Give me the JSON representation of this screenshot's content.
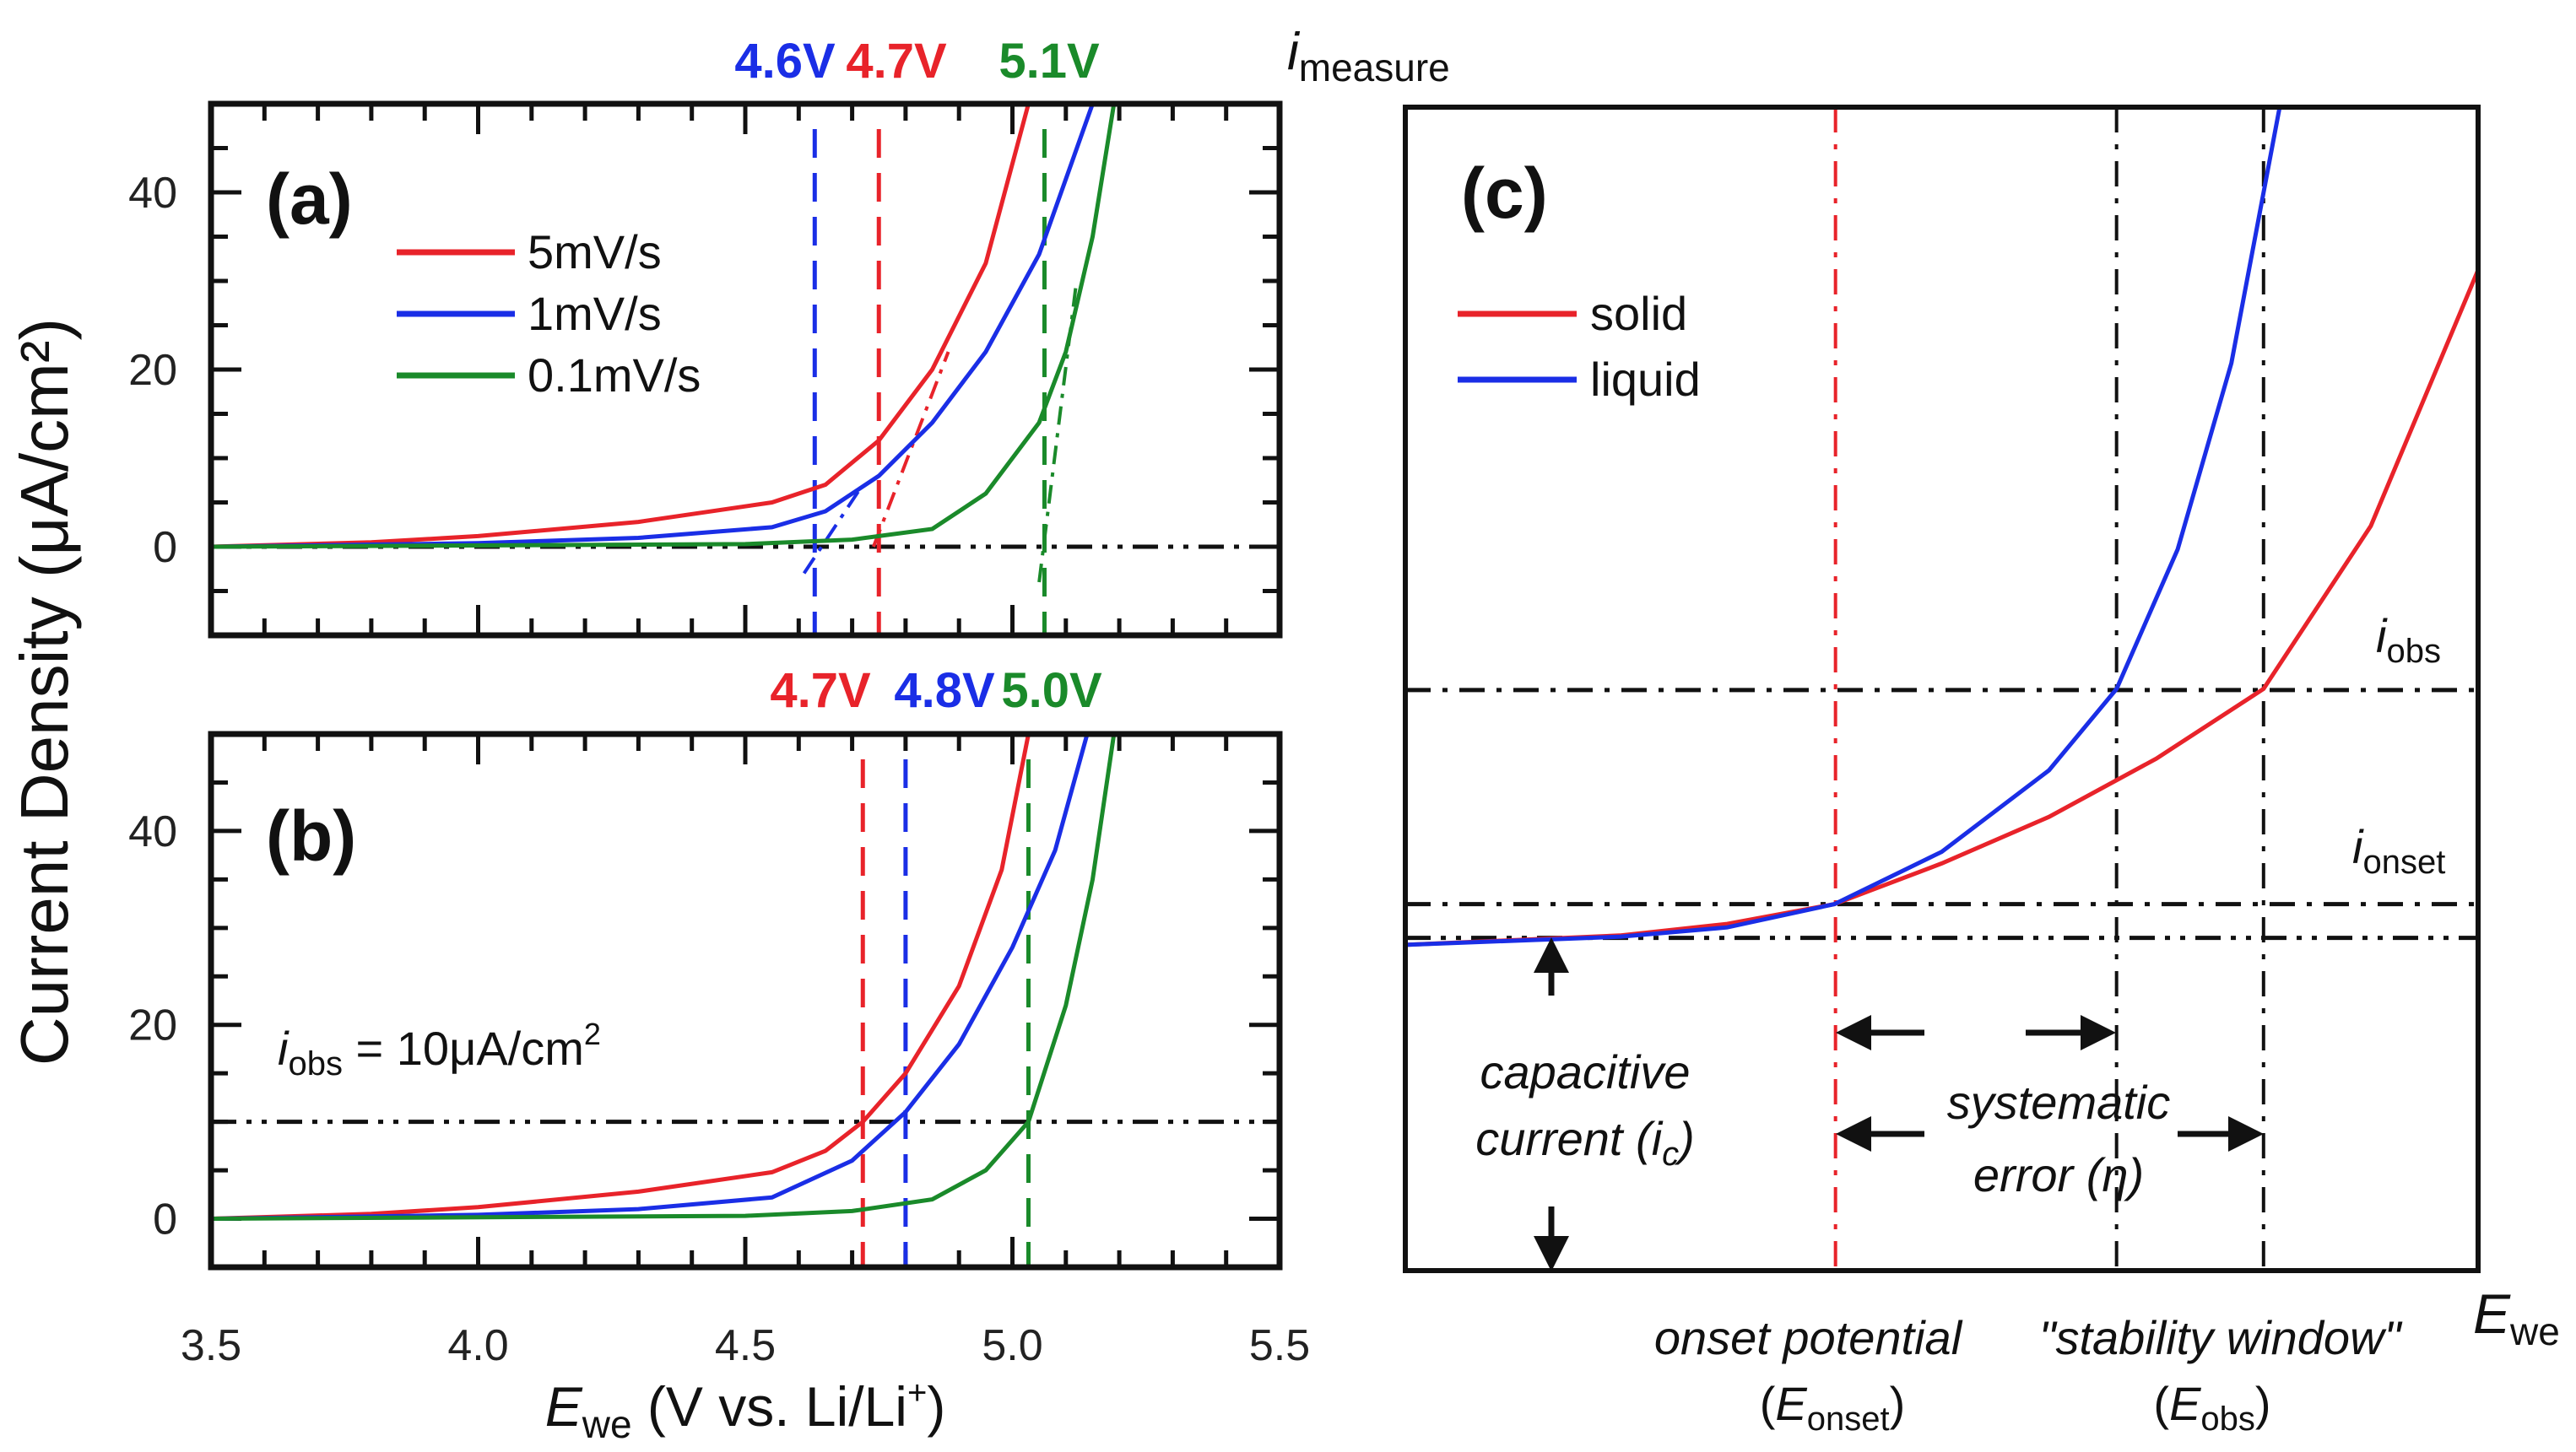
{
  "figure": {
    "ylabel": "Current Density (μA/cm²)",
    "xlabel_main": "E",
    "xlabel_sub": "we",
    "xlabel_rest": " (V vs. Li/Li",
    "xlabel_sup": "+",
    "xlabel_end": ")",
    "i_measure_main": "i",
    "i_measure_sub": "measure"
  },
  "colors": {
    "red": "#e8232a",
    "blue": "#1a2ee6",
    "green": "#1a8a2a",
    "black": "#111111"
  },
  "chart_data": [
    {
      "type": "line",
      "panel_label": "(a)",
      "xlim": [
        3.5,
        5.5
      ],
      "ylim": [
        -10,
        50
      ],
      "xticks": [
        3.5,
        4.0,
        4.5,
        5.0,
        5.5
      ],
      "yticks": [
        0,
        20,
        40
      ],
      "legend": "top-left",
      "series": [
        {
          "name": "5mV/s",
          "color": "red",
          "points": [
            [
              3.5,
              0
            ],
            [
              3.8,
              0.5
            ],
            [
              4.0,
              1.2
            ],
            [
              4.3,
              2.8
            ],
            [
              4.55,
              5
            ],
            [
              4.65,
              7
            ],
            [
              4.75,
              12
            ],
            [
              4.85,
              20
            ],
            [
              4.95,
              32
            ],
            [
              5.03,
              50
            ]
          ]
        },
        {
          "name": "1mV/s",
          "color": "blue",
          "points": [
            [
              3.5,
              0
            ],
            [
              4.0,
              0.4
            ],
            [
              4.3,
              1
            ],
            [
              4.55,
              2.2
            ],
            [
              4.65,
              4
            ],
            [
              4.75,
              8
            ],
            [
              4.85,
              14
            ],
            [
              4.95,
              22
            ],
            [
              5.05,
              33
            ],
            [
              5.15,
              50
            ]
          ]
        },
        {
          "name": "0.1mV/s",
          "color": "green",
          "points": [
            [
              3.5,
              0
            ],
            [
              4.5,
              0.3
            ],
            [
              4.7,
              0.8
            ],
            [
              4.85,
              2
            ],
            [
              4.95,
              6
            ],
            [
              5.05,
              14
            ],
            [
              5.1,
              22
            ],
            [
              5.15,
              35
            ],
            [
              5.19,
              50
            ]
          ]
        }
      ],
      "onset_lines": [
        {
          "label": "4.6V",
          "value": 4.63,
          "color": "blue"
        },
        {
          "label": "4.7V",
          "value": 4.75,
          "color": "red"
        },
        {
          "label": "5.1V",
          "value": 5.06,
          "color": "green"
        }
      ],
      "reference_line_y": 0
    },
    {
      "type": "line",
      "panel_label": "(b)",
      "xlim": [
        3.5,
        5.5
      ],
      "ylim": [
        -5,
        50
      ],
      "xticks": [
        3.5,
        4.0,
        4.5,
        5.0,
        5.5
      ],
      "yticks": [
        0,
        20,
        40
      ],
      "series": [
        {
          "name": "5mV/s",
          "color": "red",
          "points": [
            [
              3.5,
              0
            ],
            [
              3.8,
              0.5
            ],
            [
              4.0,
              1.2
            ],
            [
              4.3,
              2.8
            ],
            [
              4.55,
              4.8
            ],
            [
              4.65,
              7
            ],
            [
              4.72,
              10
            ],
            [
              4.8,
              15
            ],
            [
              4.9,
              24
            ],
            [
              4.98,
              36
            ],
            [
              5.03,
              50
            ]
          ]
        },
        {
          "name": "1mV/s",
          "color": "blue",
          "points": [
            [
              3.5,
              0
            ],
            [
              4.0,
              0.4
            ],
            [
              4.3,
              1
            ],
            [
              4.55,
              2.2
            ],
            [
              4.7,
              6
            ],
            [
              4.8,
              11
            ],
            [
              4.9,
              18
            ],
            [
              5.0,
              28
            ],
            [
              5.08,
              38
            ],
            [
              5.14,
              50
            ]
          ]
        },
        {
          "name": "0.1mV/s",
          "color": "green",
          "points": [
            [
              3.5,
              0
            ],
            [
              4.5,
              0.3
            ],
            [
              4.7,
              0.8
            ],
            [
              4.85,
              2
            ],
            [
              4.95,
              5
            ],
            [
              5.03,
              10
            ],
            [
              5.1,
              22
            ],
            [
              5.15,
              35
            ],
            [
              5.19,
              50
            ]
          ]
        }
      ],
      "onset_lines": [
        {
          "label": "4.7V",
          "value": 4.72,
          "color": "red"
        },
        {
          "label": "4.8V",
          "value": 4.8,
          "color": "blue"
        },
        {
          "label": "5.0V",
          "value": 5.03,
          "color": "green"
        }
      ],
      "reference_line_y": 10,
      "annotation": {
        "main": "i",
        "sub": "obs",
        "rest": " = 10μA/cm",
        "sup": "2"
      }
    },
    {
      "type": "line",
      "panel_label": "(c)",
      "schematic": true,
      "xlim": [
        0,
        10
      ],
      "ylim": [
        0,
        10
      ],
      "legend": "top-left",
      "series": [
        {
          "name": "solid",
          "color": "red",
          "points": [
            [
              0,
              2.8
            ],
            [
              2,
              2.88
            ],
            [
              3,
              2.98
            ],
            [
              4,
              3.15
            ],
            [
              5,
              3.5
            ],
            [
              6,
              3.9
            ],
            [
              7,
              4.4
            ],
            [
              8,
              5
            ],
            [
              9,
              6.4
            ],
            [
              10,
              8.6
            ]
          ]
        },
        {
          "name": "liquid",
          "color": "blue",
          "points": [
            [
              0,
              2.8
            ],
            [
              2,
              2.87
            ],
            [
              3,
              2.95
            ],
            [
              4,
              3.15
            ],
            [
              5,
              3.6
            ],
            [
              6,
              4.3
            ],
            [
              6.63,
              5
            ],
            [
              7.2,
              6.2
            ],
            [
              7.7,
              7.8
            ],
            [
              8.15,
              10
            ]
          ]
        }
      ],
      "levels": {
        "i_c": 2.86,
        "i_onset": 3.15,
        "i_obs": 4.99
      },
      "potentials": {
        "E_onset": 4.01,
        "E_obs_liquid": 6.63,
        "E_obs_solid": 8.0
      },
      "labels": {
        "i_obs_main": "i",
        "i_obs_sub": "obs",
        "i_onset_main": "i",
        "i_onset_sub": "onset",
        "capacitive_1": "capacitive",
        "capacitive_2": "current (",
        "capacitive_i": "i",
        "capacitive_sub": "c",
        "capacitive_end": ")",
        "systematic_1": "systematic",
        "systematic_2": "error (η)",
        "onset_potential": "onset potential",
        "stability_window": "\"stability window\"",
        "e_onset_main": "E",
        "e_onset_sub": "onset",
        "e_obs_main": "E",
        "e_obs_sub": "obs",
        "xaxis_main": "E",
        "xaxis_sub": "we",
        "paren_open": "(",
        "paren_close": ")"
      }
    }
  ]
}
